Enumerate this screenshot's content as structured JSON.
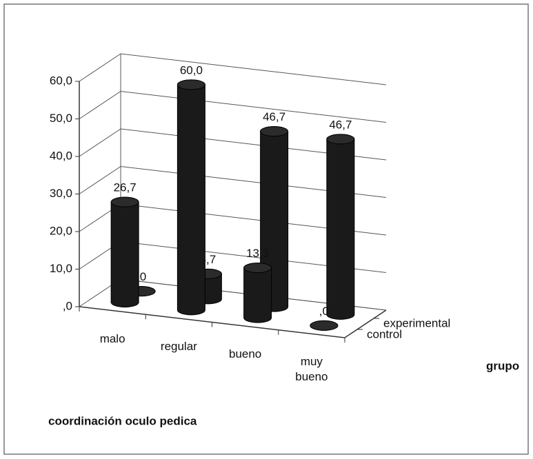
{
  "chart_data": {
    "type": "bar3d",
    "x_label": "coordinación oculo pedica",
    "legend_title": "grupo",
    "categories": [
      "malo",
      "regular",
      "bueno",
      "muy bueno"
    ],
    "series": [
      {
        "name": "control",
        "color": "#1a1a1a",
        "values": [
          26.7,
          60.0,
          13.3,
          0
        ],
        "value_labels": [
          "26,7",
          "60,0",
          "13,3",
          ",0"
        ]
      },
      {
        "name": "experimental",
        "color": "#1a1a1a",
        "values": [
          0,
          6.7,
          46.7,
          46.7
        ],
        "value_labels": [
          ",0",
          "6,7",
          "46,7",
          "46,7"
        ]
      }
    ],
    "ylim": [
      0,
      60
    ],
    "yticks": [
      {
        "value": 0,
        "label": ",0"
      },
      {
        "value": 10,
        "label": "10,0"
      },
      {
        "value": 20,
        "label": "20,0"
      },
      {
        "value": 30,
        "label": "30,0"
      },
      {
        "value": 40,
        "label": "40,0"
      },
      {
        "value": 50,
        "label": "50,0"
      },
      {
        "value": 60,
        "label": "60,0"
      }
    ],
    "grid": true
  }
}
